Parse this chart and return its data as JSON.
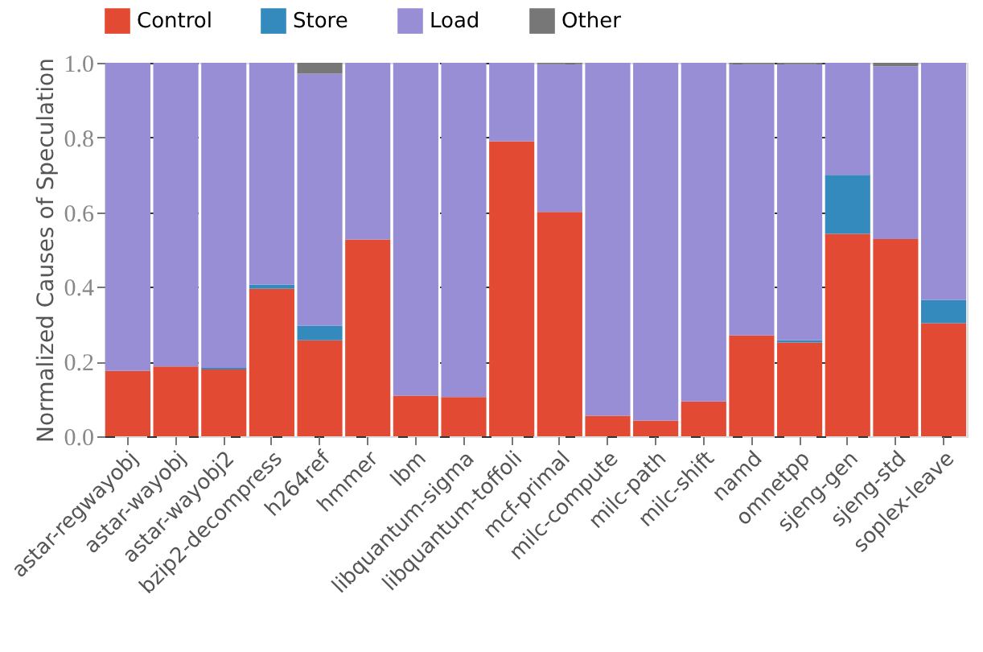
{
  "chart_data": {
    "type": "bar",
    "stacked": true,
    "ylabel": "Normalized Causes of Speculation",
    "categories": [
      "astar-regwayobj",
      "astar-wayobj",
      "astar-wayobj2",
      "bzip2-decompress",
      "h264ref",
      "hmmer",
      "lbm",
      "libquantum-sigma",
      "libquantum-toffoli",
      "mcf-primal",
      "milc-compute",
      "milc-path",
      "milc-shift",
      "namd",
      "omnetpp",
      "sjeng-gen",
      "sjeng-std",
      "soplex-leave"
    ],
    "series": [
      {
        "name": "Control",
        "color": "#e24a33",
        "values": [
          0.175,
          0.187,
          0.179,
          0.395,
          0.257,
          0.527,
          0.109,
          0.105,
          0.79,
          0.601,
          0.055,
          0.042,
          0.093,
          0.27,
          0.251,
          0.542,
          0.528,
          0.303
        ]
      },
      {
        "name": "Store",
        "color": "#348abd",
        "values": [
          0,
          0,
          0.004,
          0.011,
          0.039,
          0,
          0,
          0,
          0,
          0,
          0,
          0,
          0,
          0,
          0.006,
          0.158,
          0,
          0.062
        ]
      },
      {
        "name": "Load",
        "color": "#988ed5",
        "values": [
          0.825,
          0.813,
          0.817,
          0.594,
          0.675,
          0.473,
          0.891,
          0.895,
          0.21,
          0.395,
          0.945,
          0.958,
          0.907,
          0.726,
          0.739,
          0.3,
          0.463,
          0.635
        ]
      },
      {
        "name": "Other",
        "color": "#777777",
        "values": [
          0,
          0,
          0,
          0,
          0.029,
          0,
          0,
          0,
          0,
          0.004,
          0,
          0,
          0,
          0.004,
          0.004,
          0,
          0.009,
          0
        ]
      }
    ],
    "ylim": [
      0,
      1
    ],
    "yticks": [
      {
        "value": 0,
        "label": "0.0"
      },
      {
        "value": 0.2,
        "label": "0.2"
      },
      {
        "value": 0.4,
        "label": "0.4"
      },
      {
        "value": 0.6,
        "label": "0.6"
      },
      {
        "value": 0.8,
        "label": "0.8"
      },
      {
        "value": 1,
        "label": "1.0"
      }
    ],
    "grid": "y",
    "legend": "top"
  }
}
